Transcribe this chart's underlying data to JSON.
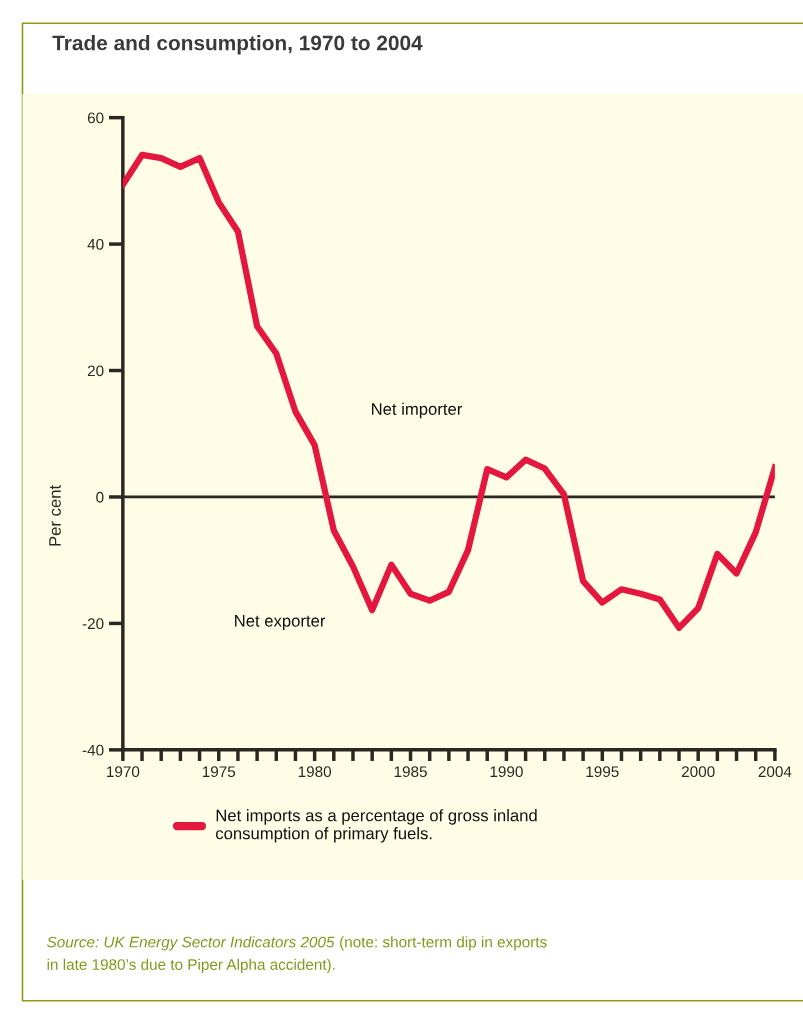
{
  "chart_data": {
    "type": "line",
    "title": "Trade and consumption, 1970 to 2004",
    "ylabel": "Per cent",
    "x": [
      1970,
      1971,
      1972,
      1973,
      1974,
      1975,
      1976,
      1977,
      1978,
      1979,
      1980,
      1981,
      1982,
      1983,
      1984,
      1985,
      1986,
      1987,
      1988,
      1989,
      1990,
      1991,
      1992,
      1993,
      1994,
      1995,
      1996,
      1997,
      1998,
      1999,
      2000,
      2001,
      2002,
      2003,
      2004
    ],
    "series": [
      {
        "name": "Net imports as a percentage of gross inland\nconsumption of primary fuels.",
        "color": "#e4173f",
        "values": [
          49.4,
          54.1,
          53.6,
          52.2,
          53.6,
          46.6,
          42.0,
          27.0,
          22.7,
          13.5,
          8.2,
          -5.3,
          -11.0,
          -17.9,
          -10.7,
          -15.3,
          -16.4,
          -15.0,
          -8.4,
          4.4,
          3.1,
          5.9,
          4.5,
          0.4,
          -13.3,
          -16.7,
          -14.6,
          -15.3,
          -16.2,
          -20.7,
          -17.6,
          -9.0,
          -12.1,
          -5.6,
          4.7
        ]
      }
    ],
    "xlim": [
      1970,
      2004
    ],
    "ylim": [
      -40,
      60
    ],
    "yticks": [
      -40,
      -20,
      0,
      20,
      40,
      60
    ],
    "xticks": [
      1970,
      {
        "value": 1971,
        "label": null
      },
      {
        "value": 1972,
        "label": null
      },
      {
        "value": 1973,
        "label": null
      },
      {
        "value": 1974,
        "label": null
      },
      1975,
      {
        "value": 1976,
        "label": null
      },
      {
        "value": 1977,
        "label": null
      },
      {
        "value": 1978,
        "label": null
      },
      {
        "value": 1979,
        "label": null
      },
      1980,
      {
        "value": 1981,
        "label": null
      },
      {
        "value": 1982,
        "label": null
      },
      {
        "value": 1983,
        "label": null
      },
      {
        "value": 1984,
        "label": null
      },
      1985,
      {
        "value": 1986,
        "label": null
      },
      {
        "value": 1987,
        "label": null
      },
      {
        "value": 1988,
        "label": null
      },
      {
        "value": 1989,
        "label": null
      },
      1990,
      {
        "value": 1991,
        "label": null
      },
      {
        "value": 1992,
        "label": null
      },
      {
        "value": 1993,
        "label": null
      },
      {
        "value": 1994,
        "label": null
      },
      1995,
      {
        "value": 1996,
        "label": null
      },
      {
        "value": 1997,
        "label": null
      },
      {
        "value": 1998,
        "label": null
      },
      {
        "value": 1999,
        "label": null
      },
      2000,
      {
        "value": 2001,
        "label": null
      },
      {
        "value": 2002,
        "label": null
      },
      {
        "value": 2003,
        "label": null
      },
      2004
    ],
    "ref_lines": [
      {
        "axis": "y",
        "value": 0,
        "color": "#2b2722"
      }
    ],
    "annotations": [
      "Net importer",
      "Net exporter",
      "Source: UK Energy Sector Indicators 2005",
      "(note: short-term dip in exports\nin late 1980’s due to Piper Alpha accident)."
    ],
    "legend": "bottom",
    "grid": false,
    "marker": "none",
    "line_style": "solid"
  }
}
